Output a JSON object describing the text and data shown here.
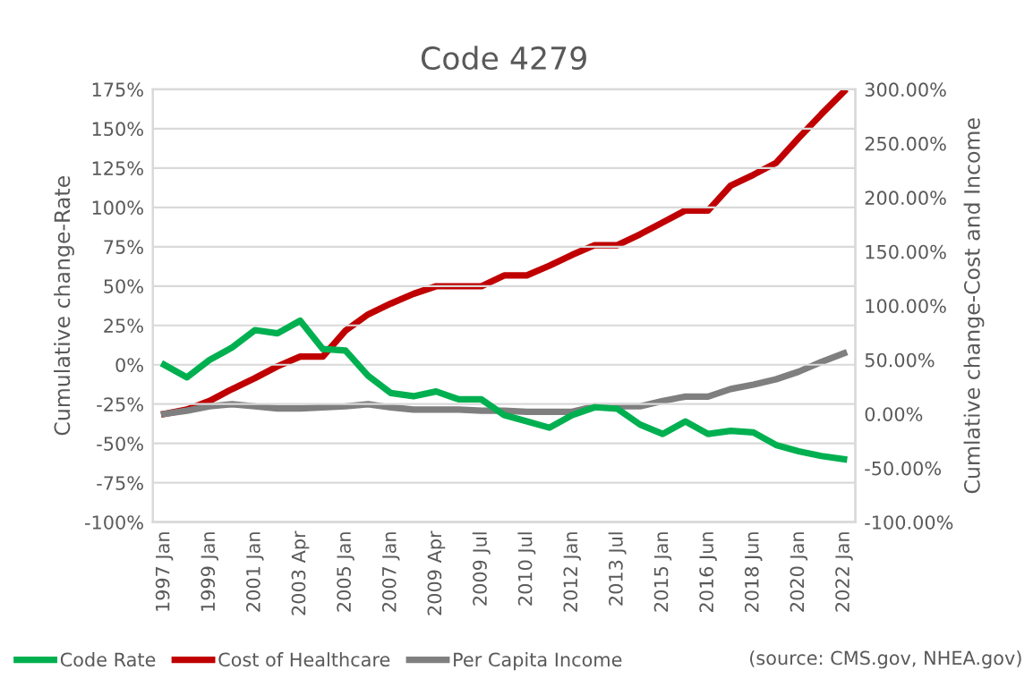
{
  "chart_data": {
    "type": "line",
    "title": "Code 4279",
    "categories": [
      "1997 Jan",
      null,
      "1999 Jan",
      null,
      "2001 Jan",
      null,
      "2003 Apr",
      null,
      "2005 Jan",
      null,
      "2007 Jan",
      null,
      "2009 Apr",
      null,
      "2009 Jul",
      null,
      "2010 Jul",
      null,
      "2012 Jan",
      null,
      "2013 Jul",
      null,
      "2015 Jan",
      null,
      "2016 Jun",
      null,
      "2018 Jun",
      null,
      "2020 Jan",
      null,
      "2022 Jan"
    ],
    "series": [
      {
        "name": "Code Rate",
        "color": "#00b050",
        "values": [
          0,
          -8,
          3,
          11,
          22,
          20,
          28,
          10,
          9,
          -7,
          -18,
          -20,
          -17,
          -22,
          -22,
          -32,
          -36,
          -40,
          -32,
          -27,
          -28,
          -38,
          -44,
          -36,
          -44,
          -42,
          -43,
          -51,
          -55,
          -58,
          -60
        ]
      },
      {
        "name": "Cost of Healthcare",
        "color": "#c00000",
        "axis": "y2",
        "values": [
          0,
          4,
          12,
          23,
          33,
          44,
          53,
          53,
          77,
          92,
          102,
          111,
          118,
          118,
          118,
          128,
          128,
          137,
          147,
          156,
          156,
          166,
          177,
          188,
          188,
          211,
          221,
          232,
          255,
          277,
          298
        ]
      },
      {
        "name": "Per Capita Income",
        "color": "#7f7f7f",
        "axis": "y2",
        "values": [
          0,
          3,
          7,
          9,
          7,
          5,
          5,
          6,
          7,
          9,
          6,
          4,
          4,
          4,
          3,
          3,
          2,
          2,
          2,
          7,
          7,
          7,
          12,
          16,
          16,
          23,
          27,
          32,
          39,
          48,
          56
        ]
      }
    ],
    "ylabel": "Cumulative change-Rate",
    "y2label": "Cumlative change-Cost and Income",
    "ylim": [
      -100,
      175
    ],
    "yticks": [
      {
        "value": -100,
        "label": "-100%"
      },
      {
        "value": -75,
        "label": "-75%"
      },
      {
        "value": -50,
        "label": "-50%"
      },
      {
        "value": -25,
        "label": "-25%"
      },
      {
        "value": 0,
        "label": "0%"
      },
      {
        "value": 25,
        "label": "25%"
      },
      {
        "value": 50,
        "label": "50%"
      },
      {
        "value": 75,
        "label": "75%"
      },
      {
        "value": 100,
        "label": "100%"
      },
      {
        "value": 125,
        "label": "125%"
      },
      {
        "value": 150,
        "label": "150%"
      },
      {
        "value": 175,
        "label": "175%"
      }
    ],
    "y2lim": [
      -100,
      300
    ],
    "y2ticks": [
      {
        "value": -100,
        "label": "-100.00%"
      },
      {
        "value": -50,
        "label": "-50.00%"
      },
      {
        "value": 0,
        "label": "0.00%"
      },
      {
        "value": 50,
        "label": "50.00%"
      },
      {
        "value": 100,
        "label": "100.00%"
      },
      {
        "value": 150,
        "label": "150.00%"
      },
      {
        "value": 200,
        "label": "200.00%"
      },
      {
        "value": 250,
        "label": "250.00%"
      },
      {
        "value": 300,
        "label": "300.00%"
      }
    ],
    "grid": "y",
    "legend": "bottom",
    "marker": "none",
    "line_style": "solid",
    "annotations": [
      "(source: CMS.gov, NHEA.gov)"
    ]
  }
}
